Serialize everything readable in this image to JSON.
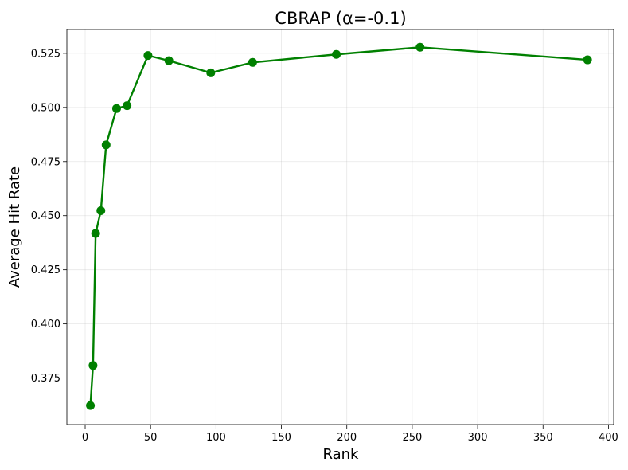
{
  "chart_data": {
    "type": "line",
    "title": "CBRAP (α=-0.1)",
    "xlabel": "Rank",
    "ylabel": "Average Hit Rate",
    "xlim": [
      -14,
      404
    ],
    "ylim": [
      0.3535,
      0.536
    ],
    "x_ticks": [
      0,
      50,
      100,
      150,
      200,
      250,
      300,
      350,
      400
    ],
    "y_ticks": [
      0.375,
      0.4,
      0.425,
      0.45,
      0.475,
      0.5,
      0.525
    ],
    "grid": true,
    "legend": "none",
    "series": [
      {
        "color": "#008000",
        "marker": "circle",
        "x": [
          4,
          6,
          8,
          12,
          16,
          24,
          32,
          48,
          64,
          96,
          128,
          192,
          256,
          384
        ],
        "y": [
          0.3623,
          0.3808,
          0.4418,
          0.4523,
          0.4827,
          0.4995,
          0.5008,
          0.524,
          0.5216,
          0.516,
          0.5208,
          0.5245,
          0.5278,
          0.522
        ]
      }
    ]
  }
}
